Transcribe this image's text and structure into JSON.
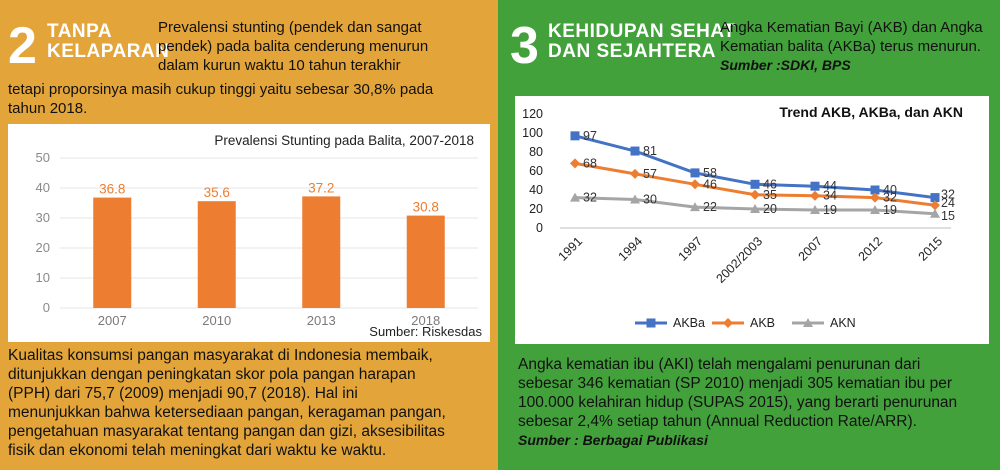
{
  "left": {
    "number": "2",
    "heading": [
      "TANPA",
      "KELAPARAN"
    ],
    "intro_lines": [
      "Prevalensi stunting (pendek dan sangat",
      "pendek) pada balita cenderung menurun",
      "dalam kurun waktu 10 tahun terakhir"
    ],
    "intro_cont_lines": [
      "tetapi proporsinya masih cukup tinggi yaitu sebesar 30,8% pada",
      "tahun 2018."
    ],
    "source": "Sumber: Riskesdas",
    "body_lines": [
      "Kualitas konsumsi pangan masyarakat di Indonesia membaik,",
      "ditunjukkan dengan peningkatan skor pola pangan harapan",
      "(PPH) dari 75,7 (2009) menjadi 90,7 (2018). Hal ini",
      "menunjukkan bahwa ketersediaan pangan, keragaman pangan,",
      "pengetahuan masyarakat tentang pangan dan gizi, aksesibilitas",
      "fisik dan ekonomi telah meningkat dari waktu ke waktu."
    ]
  },
  "right": {
    "number": "3",
    "heading": [
      "KEHIDUPAN SEHAT",
      "DAN SEJAHTERA"
    ],
    "intro_lines": [
      "Angka Kematian Bayi (AKB) dan Angka",
      "Kematian balita (AKBa) terus menurun."
    ],
    "intro_source": "Sumber :SDKI, BPS",
    "body_lines": [
      "Angka kematian ibu (AKI) telah mengalami penurunan dari",
      "sebesar 346 kematian (SP 2010) menjadi 305 kematian ibu per",
      "100.000 kelahiran hidup (SUPAS 2015), yang berarti penurunan",
      "sebesar 2,4% setiap tahun (Annual Reduction Rate/ARR)."
    ],
    "body_source": "Sumber : Berbagai Publikasi"
  },
  "chart_data": [
    {
      "type": "bar",
      "title": "Prevalensi Stunting pada Balita, 2007-2018",
      "categories": [
        "2007",
        "2010",
        "2013",
        "2018"
      ],
      "values": [
        36.8,
        35.6,
        37.2,
        30.8
      ],
      "value_labels": [
        "36.8",
        "35.6",
        "37.2",
        "30.8"
      ],
      "ylim": [
        0,
        50
      ],
      "yticks": [
        "0",
        "10",
        "20",
        "30",
        "40",
        "50"
      ],
      "grid": true,
      "color": "#ed7d31"
    },
    {
      "type": "line",
      "title": "Trend AKB, AKBa, dan AKN",
      "categories": [
        "1991",
        "1994",
        "1997",
        "2002/2003",
        "2007",
        "2012",
        "2015"
      ],
      "ylim": [
        0,
        120
      ],
      "yticks": [
        "0",
        "20",
        "40",
        "60",
        "80",
        "100",
        "120"
      ],
      "legend_position": "bottom",
      "series": [
        {
          "name": "AKBa",
          "values": [
            97,
            81,
            58,
            46,
            44,
            40,
            32
          ],
          "color": "#4472c4",
          "marker": "square"
        },
        {
          "name": "AKB",
          "values": [
            68,
            57,
            46,
            35,
            34,
            32,
            24
          ],
          "color": "#ed7d31",
          "marker": "diamond"
        },
        {
          "name": "AKN",
          "values": [
            32,
            30,
            22,
            20,
            19,
            19,
            15
          ],
          "color": "#a5a5a5",
          "marker": "triangle"
        }
      ]
    }
  ]
}
